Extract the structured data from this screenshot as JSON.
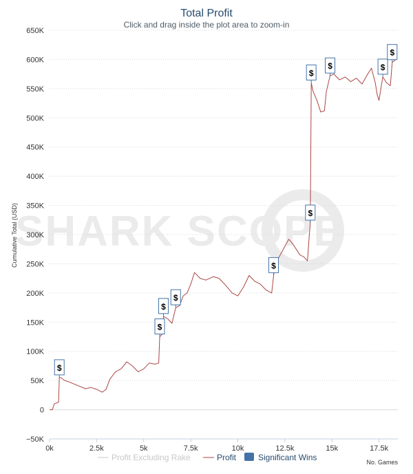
{
  "chart_data": {
    "type": "line",
    "title": "Total Profit",
    "subtitle": "Click and drag inside the plot area to zoom-in",
    "ylabel": "Cumulative Total (USD)",
    "xlabel": "No. Games",
    "watermark": "SHARK SCOPE",
    "xlim": [
      0,
      18500
    ],
    "ylim": [
      -50000,
      650000
    ],
    "x_ticks": [
      0,
      2500,
      5000,
      7500,
      10000,
      12500,
      15000,
      17500
    ],
    "x_tick_labels": [
      "0k",
      "2.5k",
      "5k",
      "7.5k",
      "10k",
      "12.5k",
      "15k",
      "17.5k"
    ],
    "y_ticks": [
      -50000,
      0,
      50000,
      100000,
      150000,
      200000,
      250000,
      300000,
      350000,
      400000,
      450000,
      500000,
      550000,
      600000,
      650000
    ],
    "y_tick_labels": [
      "−50K",
      "0",
      "50K",
      "100K",
      "150K",
      "200K",
      "250K",
      "300K",
      "350K",
      "400K",
      "450K",
      "500K",
      "550K",
      "600K",
      "650K"
    ],
    "legend": [
      {
        "name": "Profit Excluding Rake",
        "color": "#c8c8c8",
        "visible": false
      },
      {
        "name": "Profit",
        "color": "#aa4643",
        "visible": true
      },
      {
        "name": "Significant Wins",
        "color": "#4572a7",
        "visible": true
      }
    ],
    "series": [
      {
        "name": "Profit",
        "color": "#aa4643",
        "points": [
          [
            0,
            0
          ],
          [
            150,
            0
          ],
          [
            250,
            10000
          ],
          [
            400,
            12000
          ],
          [
            480,
            13000
          ],
          [
            520,
            55000
          ],
          [
            600,
            55000
          ],
          [
            800,
            50000
          ],
          [
            1000,
            48000
          ],
          [
            1300,
            44000
          ],
          [
            1600,
            40000
          ],
          [
            1900,
            36000
          ],
          [
            2200,
            38000
          ],
          [
            2500,
            35000
          ],
          [
            2800,
            30000
          ],
          [
            3000,
            35000
          ],
          [
            3200,
            52000
          ],
          [
            3500,
            65000
          ],
          [
            3800,
            70000
          ],
          [
            4100,
            82000
          ],
          [
            4400,
            75000
          ],
          [
            4700,
            65000
          ],
          [
            5000,
            70000
          ],
          [
            5300,
            80000
          ],
          [
            5600,
            78000
          ],
          [
            5800,
            80000
          ],
          [
            5850,
            125000
          ],
          [
            6000,
            130000
          ],
          [
            6050,
            160000
          ],
          [
            6300,
            155000
          ],
          [
            6500,
            148000
          ],
          [
            6700,
            175000
          ],
          [
            6900,
            178000
          ],
          [
            7100,
            195000
          ],
          [
            7300,
            200000
          ],
          [
            7500,
            215000
          ],
          [
            7700,
            235000
          ],
          [
            8000,
            225000
          ],
          [
            8300,
            222000
          ],
          [
            8700,
            228000
          ],
          [
            9000,
            225000
          ],
          [
            9300,
            215000
          ],
          [
            9700,
            200000
          ],
          [
            10000,
            195000
          ],
          [
            10300,
            210000
          ],
          [
            10600,
            230000
          ],
          [
            10900,
            220000
          ],
          [
            11200,
            215000
          ],
          [
            11500,
            205000
          ],
          [
            11800,
            200000
          ],
          [
            11900,
            230000
          ],
          [
            12000,
            250000
          ],
          [
            12200,
            262000
          ],
          [
            12500,
            280000
          ],
          [
            12700,
            292000
          ],
          [
            12900,
            285000
          ],
          [
            13100,
            275000
          ],
          [
            13300,
            265000
          ],
          [
            13500,
            262000
          ],
          [
            13700,
            255000
          ],
          [
            13800,
            300000
          ],
          [
            13850,
            320000
          ],
          [
            13900,
            560000
          ],
          [
            14000,
            545000
          ],
          [
            14200,
            530000
          ],
          [
            14400,
            510000
          ],
          [
            14600,
            512000
          ],
          [
            14700,
            545000
          ],
          [
            14900,
            572000
          ],
          [
            15100,
            575000
          ],
          [
            15400,
            565000
          ],
          [
            15700,
            570000
          ],
          [
            16000,
            562000
          ],
          [
            16300,
            568000
          ],
          [
            16600,
            558000
          ],
          [
            16900,
            575000
          ],
          [
            17100,
            585000
          ],
          [
            17300,
            560000
          ],
          [
            17400,
            540000
          ],
          [
            17500,
            530000
          ],
          [
            17700,
            570000
          ],
          [
            17900,
            560000
          ],
          [
            18100,
            555000
          ],
          [
            18200,
            595000
          ],
          [
            18400,
            600000
          ]
        ]
      }
    ],
    "significant_wins": [
      {
        "x": 520,
        "y": 55000,
        "label": "$"
      },
      {
        "x": 5850,
        "y": 125000,
        "label": "$"
      },
      {
        "x": 6050,
        "y": 160000,
        "label": "$"
      },
      {
        "x": 6700,
        "y": 175000,
        "label": "$"
      },
      {
        "x": 11900,
        "y": 230000,
        "label": "$"
      },
      {
        "x": 13850,
        "y": 320000,
        "label": "$"
      },
      {
        "x": 13900,
        "y": 560000,
        "label": "$"
      },
      {
        "x": 14900,
        "y": 572000,
        "label": "$"
      },
      {
        "x": 17700,
        "y": 570000,
        "label": "$"
      },
      {
        "x": 18200,
        "y": 595000,
        "label": "$"
      }
    ]
  }
}
